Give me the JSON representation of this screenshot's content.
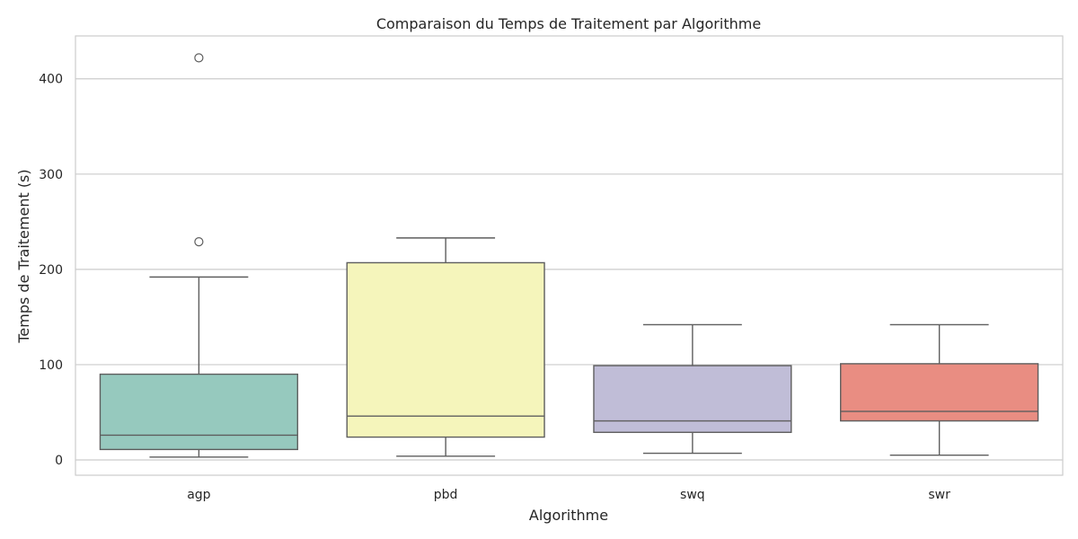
{
  "chart_data": {
    "type": "box",
    "title": "Comparaison du Temps de Traitement par Algorithme",
    "xlabel": "Algorithme",
    "ylabel": "Temps de Traitement (s)",
    "ylim": [
      -16,
      445
    ],
    "yticks": [
      0,
      100,
      200,
      300,
      400
    ],
    "grid": true,
    "categories": [
      "agp",
      "pbd",
      "swq",
      "swr"
    ],
    "series": [
      {
        "category": "agp",
        "whisker_low": 3,
        "q1": 11,
        "median": 26,
        "q3": 90,
        "whisker_high": 192,
        "outliers": [
          229,
          422
        ],
        "color": "#96c9be"
      },
      {
        "category": "pbd",
        "whisker_low": 4,
        "q1": 24,
        "median": 46,
        "q3": 207,
        "whisker_high": 233,
        "outliers": [],
        "color": "#f5f5bb"
      },
      {
        "category": "swq",
        "whisker_low": 7,
        "q1": 29,
        "median": 41,
        "q3": 99,
        "whisker_high": 142,
        "outliers": [],
        "color": "#c0bdd7"
      },
      {
        "category": "swr",
        "whisker_low": 5,
        "q1": 41,
        "median": 51,
        "q3": 101,
        "whisker_high": 142,
        "outliers": [],
        "color": "#e98d82"
      }
    ]
  }
}
